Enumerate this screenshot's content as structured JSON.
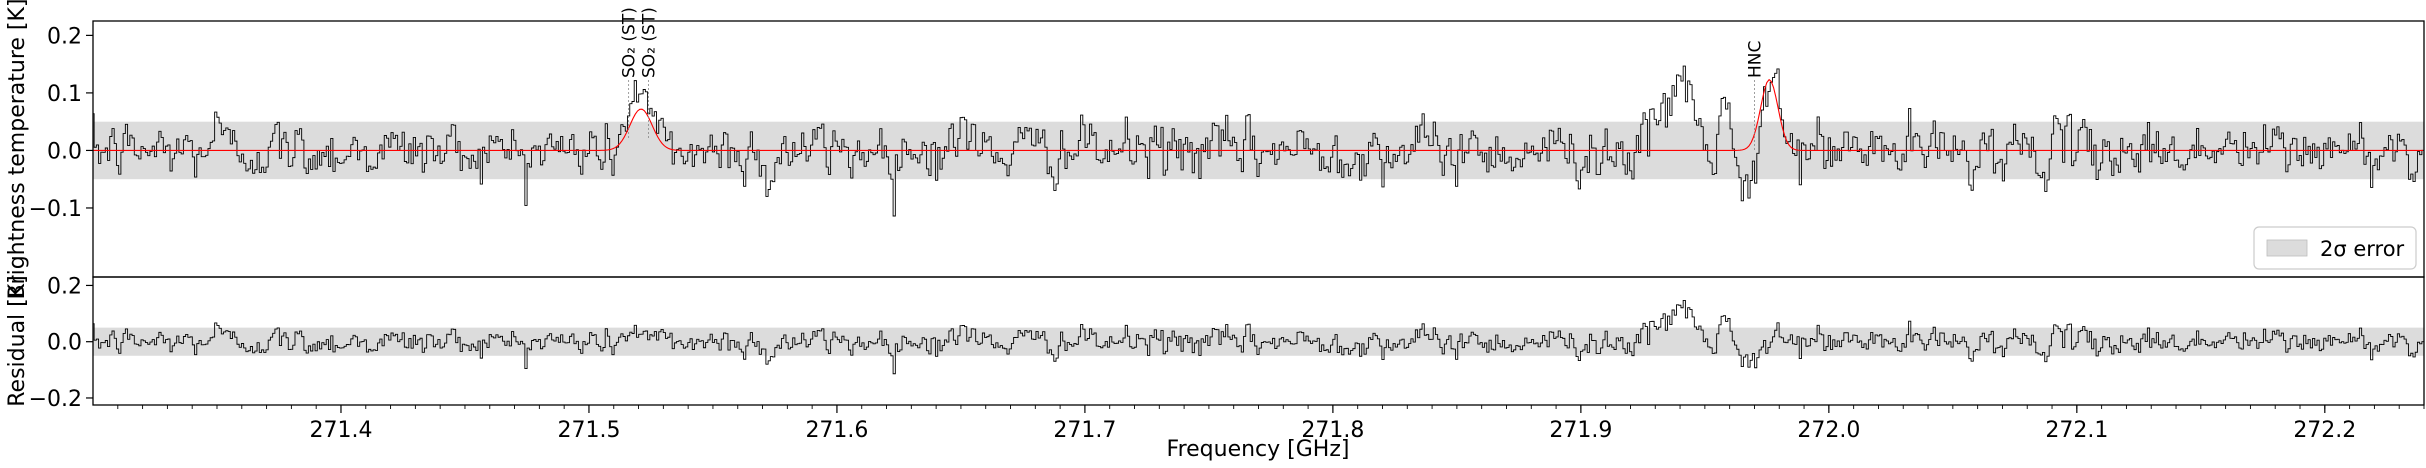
{
  "chart_data": {
    "type": "line",
    "x_label": "Frequency [GHz]",
    "xlim": [
      271.3,
      272.24
    ],
    "x_ticks": [
      "271.4",
      "271.5",
      "271.6",
      "271.7",
      "271.8",
      "271.9",
      "272.0",
      "272.1",
      "272.2"
    ],
    "top": {
      "ylabel": "Brightness temperature [K]",
      "ylim": [
        -0.22,
        0.225
      ],
      "y_ticks": [
        "−0.1",
        "0.0",
        "0.1",
        "0.2"
      ],
      "error_band": [
        -0.05,
        0.05
      ],
      "series": [
        {
          "role": "observed",
          "color": "#000000",
          "style": "step"
        },
        {
          "role": "model",
          "color": "#ff0000",
          "style": "line"
        }
      ],
      "model_peaks": [
        {
          "center": 271.521,
          "amplitude": 0.072,
          "width": 0.0045
        },
        {
          "center": 271.976,
          "amplitude": 0.123,
          "width": 0.0035
        }
      ],
      "line_markers": [
        {
          "x": 271.516,
          "label": "SO₂ (ST)"
        },
        {
          "x": 271.524,
          "label": "SO₂ (ST)"
        },
        {
          "x": 271.97,
          "label": "HNC"
        }
      ],
      "legend": {
        "label": "2σ error",
        "placement": "lower-right"
      }
    },
    "bottom": {
      "ylabel": "Residual [K]",
      "ylim": [
        -0.225,
        0.23
      ],
      "y_ticks": [
        "−0.2",
        "0.0",
        "0.2"
      ],
      "error_band": [
        -0.05,
        0.05
      ],
      "series": [
        {
          "role": "residual",
          "color": "#000000",
          "style": "step"
        }
      ]
    },
    "features": [
      {
        "center": 271.35,
        "amp": 0.04,
        "width": 0.002
      },
      {
        "center": 271.519,
        "amp": 0.045,
        "width": 0.003
      },
      {
        "center": 271.572,
        "amp": -0.05,
        "width": 0.002
      },
      {
        "center": 271.651,
        "amp": 0.05,
        "width": 0.002
      },
      {
        "center": 271.932,
        "amp": 0.06,
        "width": 0.003
      },
      {
        "center": 271.94,
        "amp": 0.13,
        "width": 0.0025
      },
      {
        "center": 271.946,
        "amp": 0.07,
        "width": 0.003
      },
      {
        "center": 271.952,
        "amp": -0.05,
        "width": 0.003
      },
      {
        "center": 271.958,
        "amp": 0.08,
        "width": 0.004
      },
      {
        "center": 271.966,
        "amp": -0.08,
        "width": 0.004
      },
      {
        "center": 271.972,
        "amp": -0.06,
        "width": 0.003
      },
      {
        "center": 271.977,
        "amp": 0.04,
        "width": 0.003
      }
    ],
    "noise_sigma": 0.023,
    "sample_step": 0.0009
  }
}
